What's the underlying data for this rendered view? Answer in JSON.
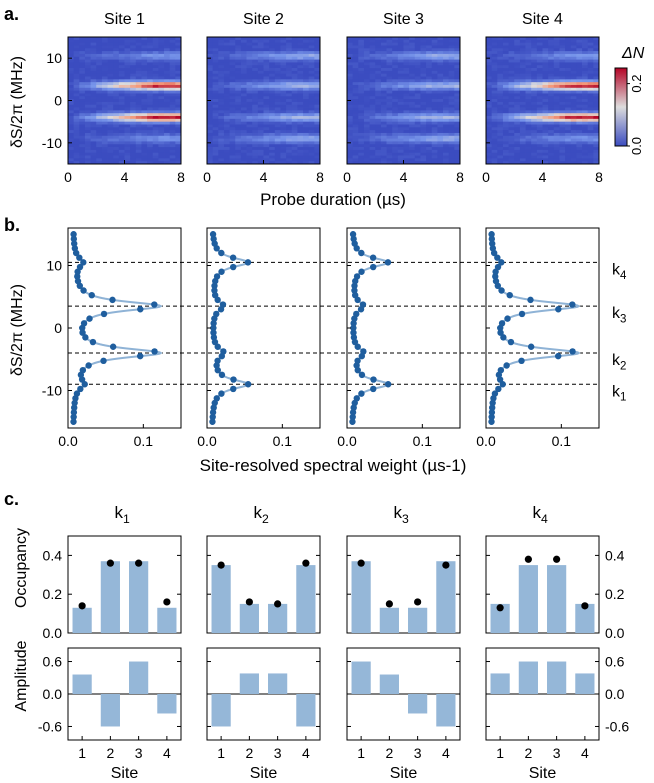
{
  "panels": {
    "a": {
      "label": "a.",
      "titles": [
        "Site 1",
        "Site 2",
        "Site 3",
        "Site 4"
      ],
      "xlabel": "Probe duration (µs)",
      "ylabel": "δS/2π (MHz)",
      "colorbar_label": "ΔN",
      "colorbar_ticks": [
        "0.0",
        "0.2"
      ]
    },
    "b": {
      "label": "b.",
      "xlabel": "Site-resolved spectral weight (µs-1)",
      "ylabel": "δS/2π (MHz)",
      "mode_labels": [
        "k4",
        "k3",
        "k2",
        "k1"
      ]
    },
    "c": {
      "label": "c.",
      "titles": [
        "k1",
        "k2",
        "k3",
        "k4"
      ],
      "ylabel_top": "Occupancy",
      "ylabel_bottom": "Amplitude",
      "xlabel": "Site"
    }
  },
  "colors": {
    "bar": "#95b7d8",
    "fit_line": "#8fb3d6",
    "points": "#1f5e9e",
    "heat_low": "#3c55c8",
    "heat_high": "#e8553f"
  },
  "chart_data": [
    {
      "type": "heatmap",
      "panel": "a",
      "titles": [
        "Site 1",
        "Site 2",
        "Site 3",
        "Site 4"
      ],
      "xlabel": "Probe duration (µs)",
      "ylabel": "δS/2π (MHz)",
      "xlim": [
        0,
        8
      ],
      "ylim": [
        -15,
        15
      ],
      "xticks": [
        0,
        4,
        8
      ],
      "yticks": [
        -10,
        0,
        10
      ],
      "resonances_mhz": [
        -9,
        -4,
        3.5,
        10.5
      ],
      "max_amplitude_by_site": [
        [
          0.06,
          0.24,
          0.24,
          0.06
        ],
        [
          0.08,
          0.09,
          0.09,
          0.08
        ],
        [
          0.08,
          0.09,
          0.09,
          0.08
        ],
        [
          0.06,
          0.24,
          0.24,
          0.06
        ]
      ],
      "colorbar": {
        "label": "ΔN",
        "range": [
          0,
          0.25
        ],
        "ticks": [
          0.0,
          0.2
        ]
      }
    },
    {
      "type": "scatter",
      "panel": "b",
      "xlabel": "Site-resolved spectral weight (µs-1)",
      "ylabel": "δS/2π (MHz)",
      "xlim": [
        0,
        0.15
      ],
      "ylim": [
        -16,
        16
      ],
      "xticks": [
        0.0,
        0.1
      ],
      "yticks": [
        -10,
        0,
        10
      ],
      "modes": [
        {
          "name": "k1",
          "y": -9
        },
        {
          "name": "k2",
          "y": -4
        },
        {
          "name": "k3",
          "y": 3.5
        },
        {
          "name": "k4",
          "y": 10.5
        }
      ],
      "peak_weights_by_site": [
        [
          0.012,
          0.115,
          0.115,
          0.012
        ],
        [
          0.048,
          0.015,
          0.015,
          0.048
        ],
        [
          0.048,
          0.015,
          0.015,
          0.048
        ],
        [
          0.012,
          0.115,
          0.115,
          0.012
        ]
      ],
      "baseline": 0.006,
      "peak_width_mhz": 0.9,
      "note": "peak weights listed per site in mode order k1,k2,k3,k4"
    },
    {
      "type": "bar",
      "panel": "c",
      "categories": [
        1,
        2,
        3,
        4
      ],
      "occupancy_ylim": [
        0,
        0.5
      ],
      "occupancy_yticks": [
        0.0,
        0.2,
        0.4
      ],
      "amplitude_ylim": [
        -0.85,
        0.85
      ],
      "amplitude_yticks": [
        -0.6,
        0.0,
        0.6
      ],
      "modes": [
        {
          "name": "k1",
          "occupancy": [
            0.13,
            0.37,
            0.37,
            0.13
          ],
          "measured": [
            0.14,
            0.36,
            0.36,
            0.16
          ],
          "amplitude": [
            0.36,
            -0.6,
            0.6,
            -0.36
          ]
        },
        {
          "name": "k2",
          "occupancy": [
            0.35,
            0.15,
            0.15,
            0.35
          ],
          "measured": [
            0.35,
            0.16,
            0.15,
            0.36
          ],
          "amplitude": [
            -0.6,
            0.38,
            0.38,
            -0.6
          ]
        },
        {
          "name": "k3",
          "occupancy": [
            0.37,
            0.13,
            0.13,
            0.37
          ],
          "measured": [
            0.36,
            0.15,
            0.16,
            0.35
          ],
          "amplitude": [
            0.6,
            0.36,
            -0.36,
            -0.6
          ]
        },
        {
          "name": "k4",
          "occupancy": [
            0.15,
            0.35,
            0.35,
            0.15
          ],
          "measured": [
            0.13,
            0.38,
            0.38,
            0.14
          ],
          "amplitude": [
            0.38,
            0.6,
            0.6,
            0.38
          ]
        }
      ]
    }
  ]
}
